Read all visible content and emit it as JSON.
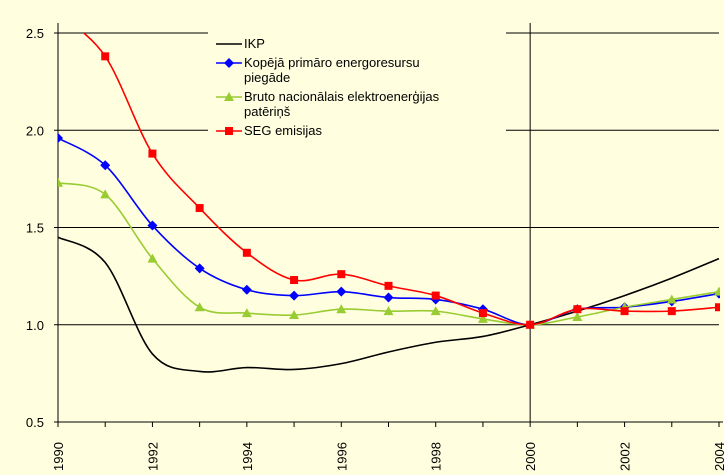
{
  "chart_data": {
    "type": "line",
    "x": [
      1990,
      1991,
      1992,
      1993,
      1994,
      1995,
      1996,
      1997,
      1998,
      1999,
      2000,
      2001,
      2002,
      2003,
      2004
    ],
    "series": [
      {
        "name": "IKP",
        "color": "#000000",
        "marker": "none",
        "values": [
          1.45,
          1.32,
          0.85,
          0.76,
          0.78,
          0.77,
          0.8,
          0.86,
          0.91,
          0.94,
          1.0,
          1.07,
          1.15,
          1.24,
          1.34
        ]
      },
      {
        "name": "Kopējā primāro energoresursu piegāde",
        "color": "#0000ff",
        "marker": "diamond",
        "values": [
          1.96,
          1.82,
          1.51,
          1.29,
          1.18,
          1.15,
          1.17,
          1.14,
          1.13,
          1.08,
          1.0,
          1.08,
          1.09,
          1.12,
          1.16
        ]
      },
      {
        "name": "Bruto nacionālais elektroenerģijas patēriņš",
        "color": "#99cc33",
        "marker": "triangle",
        "values": [
          1.73,
          1.67,
          1.34,
          1.09,
          1.06,
          1.05,
          1.08,
          1.07,
          1.07,
          1.03,
          1.0,
          1.04,
          1.09,
          1.13,
          1.17
        ]
      },
      {
        "name": "SEG emisijas",
        "color": "#ff0000",
        "marker": "square",
        "values": [
          2.6,
          2.38,
          1.88,
          1.6,
          1.37,
          1.23,
          1.26,
          1.2,
          1.15,
          1.06,
          1.0,
          1.08,
          1.07,
          1.07,
          1.09
        ]
      }
    ],
    "xlim": [
      1990,
      2004
    ],
    "xticks": [
      1990,
      1992,
      1994,
      1996,
      1998,
      2000,
      2002,
      2004
    ],
    "ylim": [
      0.5,
      2.5
    ],
    "yticks": [
      {
        "value": 0.5,
        "label": "0.5"
      },
      {
        "value": 1,
        "label": "1.0"
      },
      1.5,
      {
        "value": 2,
        "label": "2.0"
      },
      2.5
    ],
    "grid": true,
    "vline": 2000
  }
}
